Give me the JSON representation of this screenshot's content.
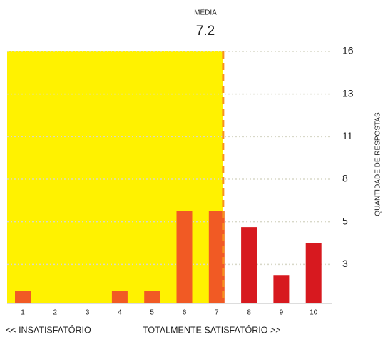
{
  "chart_data": {
    "type": "bar",
    "mean_label": "MÉDIA",
    "mean": 7.2,
    "categories": [
      "1",
      "2",
      "3",
      "4",
      "5",
      "6",
      "7",
      "8",
      "9",
      "10"
    ],
    "values": [
      1,
      0,
      0,
      1,
      1,
      6,
      6,
      5,
      2,
      4
    ],
    "colors": [
      "#f15a24",
      "#f15a24",
      "#f15a24",
      "#f15a24",
      "#f15a24",
      "#f15a24",
      "#f15a24",
      "#d7191f",
      "#d7191f",
      "#d7191f"
    ],
    "highlight_color": "#fff200",
    "mean_line_color": "#f7931e",
    "ylim": [
      0,
      16
    ],
    "yticks": [
      {
        "value": 2.667,
        "label": "3"
      },
      {
        "value": 5.333,
        "label": "5"
      },
      {
        "value": 8,
        "label": "8"
      },
      {
        "value": 10.667,
        "label": "11"
      },
      {
        "value": 13.333,
        "label": "13"
      },
      {
        "value": 16,
        "label": "16"
      }
    ],
    "ylabel": "QUANTIDADE DE RESPOSTAS",
    "xlabel_left": "<< INSATISFATÓRIO",
    "xlabel_right": "TOTALMENTE SATISFATÓRIO >>",
    "grid": true
  }
}
